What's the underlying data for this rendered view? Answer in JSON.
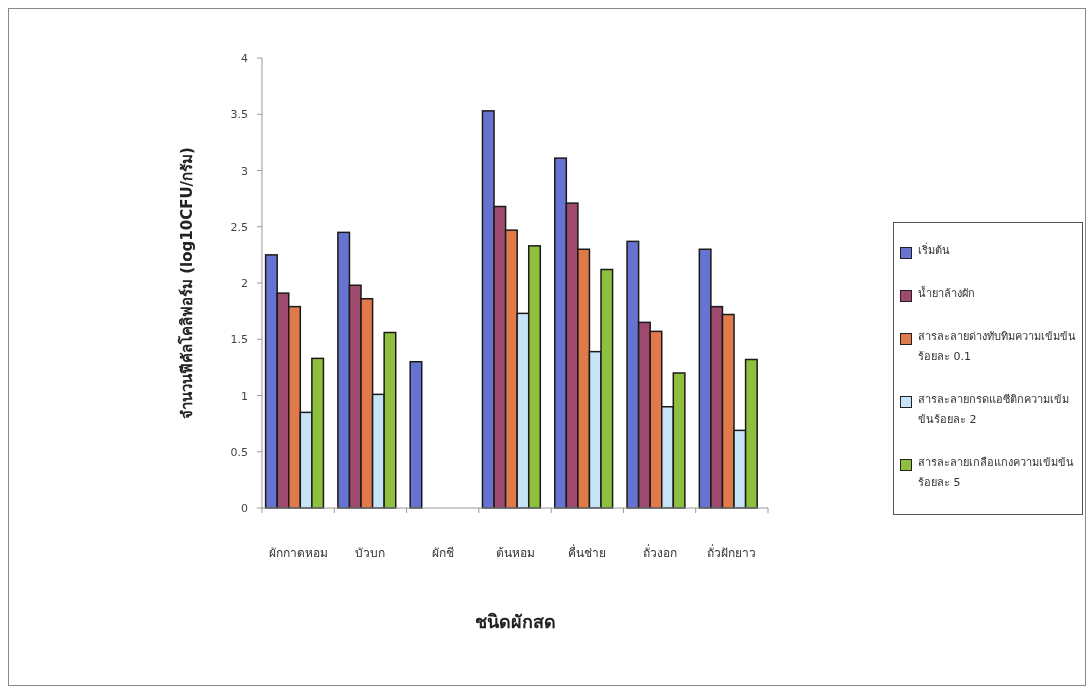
{
  "chart_data": {
    "type": "bar",
    "xlabel": "ชนิดผักสด",
    "ylabel": "จำนวนฟีคัลโคลิฟอร์ม (log10CFU/กรัม)",
    "categories": [
      "ผักกาดหอม",
      "บัวบก",
      "ผักชี",
      "ต้นหอม",
      "คื่นช่าย",
      "ถั่วงอก",
      "ถั่วฝักยาว"
    ],
    "series": [
      {
        "name": "เริ่มต้น",
        "color": "#6673d1",
        "values": [
          2.25,
          2.45,
          1.3,
          3.53,
          3.11,
          2.37,
          2.3
        ]
      },
      {
        "name": "น้ำยาล้างผัก",
        "color": "#9e4a6e",
        "values": [
          1.91,
          1.98,
          null,
          2.68,
          2.71,
          1.65,
          1.79
        ]
      },
      {
        "name": "สารละลายด่างทับทิมความเข้มข้นร้อยละ 0.1",
        "color": "#e07a4a",
        "values": [
          1.79,
          1.86,
          null,
          2.47,
          2.3,
          1.57,
          1.72
        ]
      },
      {
        "name": "สารละลายกรดแอซีติกความเข้มข้นร้อยละ 2",
        "color": "#c6e3f7",
        "values": [
          0.85,
          1.01,
          null,
          1.73,
          1.39,
          0.9,
          0.69
        ]
      },
      {
        "name": "สารละลายเกลือแกงความเข้มข้นร้อยละ 5",
        "color": "#8fbf3f",
        "values": [
          1.33,
          1.56,
          null,
          2.33,
          2.12,
          1.2,
          1.32
        ]
      }
    ],
    "ylim": [
      0,
      4
    ],
    "yticks": [
      0,
      0.5,
      1,
      1.5,
      2,
      2.5,
      3,
      3.5,
      4
    ],
    "legend": "right"
  }
}
